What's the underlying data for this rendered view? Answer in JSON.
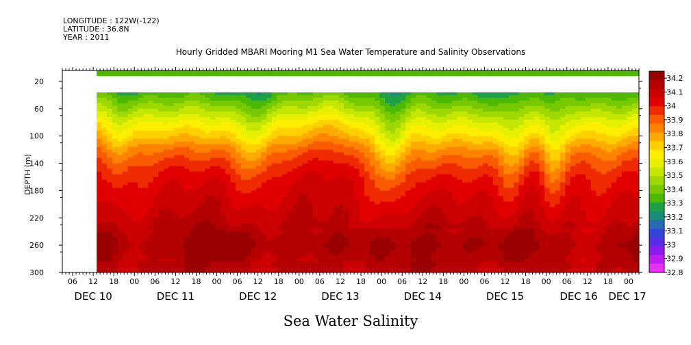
{
  "meta": {
    "longitude": "LONGITUDE : 122W(-122)",
    "latitude": "LATITUDE : 36.8N",
    "year": "YEAR : 2011"
  },
  "chart_data": {
    "type": "heatmap",
    "title": "Hourly Gridded MBARI Mooring M1 Sea Water Temperature and Salinity Observations",
    "ylabel": "DEPTH (m)",
    "xlabel": "",
    "variable_label": "Sea Water Salinity",
    "y_axis": {
      "range": [
        300,
        4
      ],
      "inverted": true,
      "tick_labels": [
        "20",
        "60",
        "100",
        "140",
        "180",
        "220",
        "260",
        "300"
      ],
      "tick_values": [
        20,
        60,
        100,
        140,
        180,
        220,
        260,
        300
      ]
    },
    "x_axis": {
      "hour_labels": [
        "06",
        "12",
        "18",
        "00",
        "06",
        "12",
        "18",
        "00",
        "06",
        "12",
        "18",
        "00",
        "06",
        "12",
        "18",
        "00",
        "06",
        "12",
        "18",
        "00",
        "06",
        "12",
        "18",
        "00",
        "06",
        "12",
        "18",
        "00",
        "06",
        "12",
        "18",
        "00"
      ],
      "day_labels": [
        "DEC 10",
        "DEC 11",
        "DEC 12",
        "DEC 13",
        "DEC 14",
        "DEC 15",
        "DEC 16",
        "DEC 17"
      ],
      "start": "DEC 10 03:00",
      "end": "DEC 17 03:00",
      "data_start": "DEC 10 13:00"
    },
    "colorbar": {
      "labels": [
        "34.2",
        "34.1",
        "34",
        "33.9",
        "33.8",
        "33.7",
        "33.6",
        "33.5",
        "33.4",
        "33.3",
        "33.2",
        "33.1",
        "33",
        "32.9",
        "32.8"
      ],
      "colors": [
        "#9b0000",
        "#b40000",
        "#cc0000",
        "#e10000",
        "#f02a00",
        "#fa5a00",
        "#ff8200",
        "#ffaa00",
        "#ffd000",
        "#ffee00",
        "#e6f000",
        "#c4e600",
        "#9fd800",
        "#78c800",
        "#4cb800",
        "#1ea046",
        "#1a8c78",
        "#2a6cb4",
        "#3346d8",
        "#5a2ce6",
        "#8a1aee",
        "#c01cf0",
        "#e632f4"
      ],
      "min": 32.8,
      "max": 34.25
    },
    "no_data_depth_range": [
      12,
      36
    ],
    "profile": [
      {
        "depth": 4,
        "value": 33.34
      },
      {
        "depth": 12,
        "value": 33.34
      },
      {
        "depth": 36,
        "value": 33.32
      },
      {
        "depth": 45,
        "value": 33.38
      },
      {
        "depth": 60,
        "value": 33.48
      },
      {
        "depth": 80,
        "value": 33.62
      },
      {
        "depth": 100,
        "value": 33.73
      },
      {
        "depth": 120,
        "value": 33.86
      },
      {
        "depth": 140,
        "value": 33.95
      },
      {
        "depth": 160,
        "value": 34.02
      },
      {
        "depth": 180,
        "value": 34.06
      },
      {
        "depth": 200,
        "value": 34.09
      },
      {
        "depth": 220,
        "value": 34.12
      },
      {
        "depth": 240,
        "value": 34.16
      },
      {
        "depth": 260,
        "value": 34.2
      },
      {
        "depth": 280,
        "value": 34.16
      },
      {
        "depth": 300,
        "value": 34.14
      }
    ]
  }
}
